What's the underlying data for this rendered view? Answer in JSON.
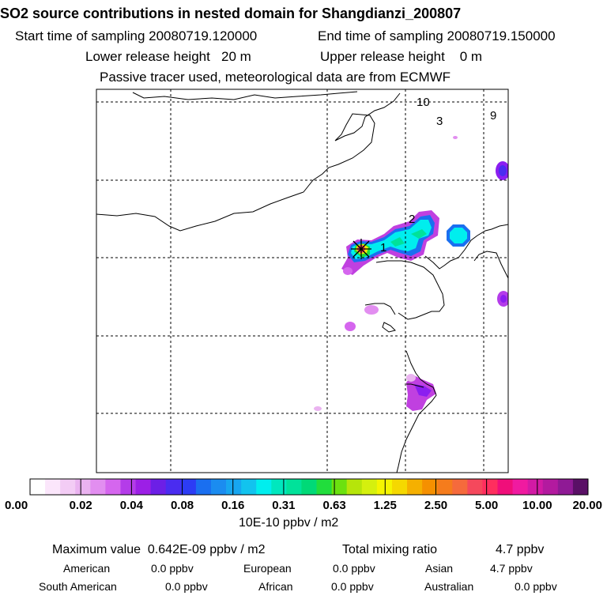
{
  "header": {
    "title": "SO2 source contributions in nested domain for Shangdianzi_200807",
    "start_label": "Start time of sampling",
    "start_value": "20080719.120000",
    "end_label": "End time of sampling",
    "end_value": "20080719.150000",
    "lower_label": "Lower release height",
    "lower_value": "20 m",
    "upper_label": "Upper release height",
    "upper_value": "0 m",
    "passive_note": "Passive tracer used, meteorological data are from ECMWF"
  },
  "map": {
    "region_labels": [
      "10",
      "3",
      "9",
      "2",
      "1"
    ]
  },
  "legend": {
    "tick_labels": [
      "0.00",
      "0.02",
      "0.04",
      "0.08",
      "0.16",
      "0.31",
      "0.63",
      "1.25",
      "2.50",
      "5.00",
      "10.00",
      "20.00"
    ],
    "colors": [
      "#ffffff",
      "#fbe6fb",
      "#f3ccf5",
      "#eab3f0",
      "#e28ef0",
      "#d566ee",
      "#b43ce9",
      "#9c1fe6",
      "#6c1fe6",
      "#4a2cf0",
      "#2c3cf5",
      "#1a6ff0",
      "#1b8cf0",
      "#17a6f0",
      "#12c3ee",
      "#00eeee",
      "#00e7be",
      "#00e29a",
      "#00d977",
      "#21dd3c",
      "#6be10f",
      "#b6e50a",
      "#d5f00e",
      "#f5f500",
      "#f5d800",
      "#f5b000",
      "#f59000",
      "#f57c1c",
      "#f56a3c",
      "#f5485c",
      "#ff2e5e",
      "#f00e7a",
      "#f01aa0",
      "#d21aa5",
      "#b31a9f",
      "#8f1a95",
      "#5a1066"
    ],
    "unit": "10E-10 ppbv / m2"
  },
  "summary": {
    "max_label": "Maximum value",
    "max_value": "0.642E-09 ppbv / m2",
    "total_label": "Total mixing ratio",
    "total_value": "4.7 ppbv",
    "regions": [
      {
        "name": "American",
        "value": "0.0 ppbv"
      },
      {
        "name": "European",
        "value": "0.0 ppbv"
      },
      {
        "name": "Asian",
        "value": "4.7 ppbv"
      },
      {
        "name": "South American",
        "value": "0.0 ppbv"
      },
      {
        "name": "African",
        "value": "0.0 ppbv"
      },
      {
        "name": "Australian",
        "value": "0.0 ppbv"
      }
    ]
  }
}
